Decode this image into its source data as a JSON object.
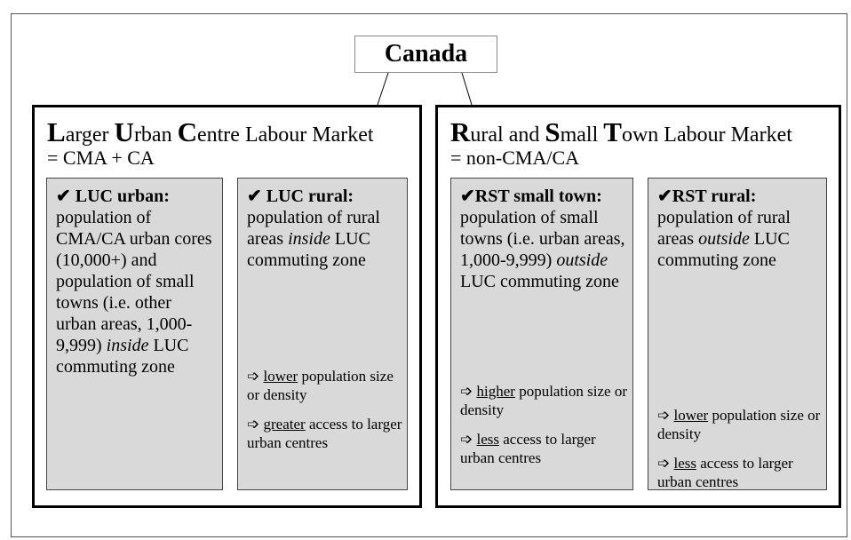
{
  "root": {
    "label": "Canada"
  },
  "markets": [
    {
      "title": [
        {
          "t": "L",
          "s": "cap"
        },
        "arger ",
        {
          "t": "U",
          "s": "cap"
        },
        "rban ",
        {
          "t": "C",
          "s": "cap"
        },
        "entre Labour Market"
      ],
      "subtitle": "= CMA + CA",
      "zones": [
        {
          "heading": "✔ LUC urban:",
          "description": [
            "population of CMA/CA urban cores (10,000+) and population of small towns (i.e. other urban areas, 1,000-9,999) ",
            {
              "t": "inside",
              "s": "i"
            },
            " LUC commuting zone"
          ]
        },
        {
          "heading": "✔ LUC rural:",
          "description": [
            "population of rural areas ",
            {
              "t": "inside",
              "s": "i"
            },
            " LUC commuting zone"
          ],
          "traits": [
            [
              "➩ ",
              {
                "t": "lower",
                "s": "u"
              },
              " population size or density"
            ],
            [
              "➩ ",
              {
                "t": "greater",
                "s": "u"
              },
              " access to larger urban centres"
            ]
          ]
        }
      ]
    },
    {
      "title": [
        {
          "t": "R",
          "s": "cap"
        },
        "ural and ",
        {
          "t": "S",
          "s": "cap"
        },
        "mall ",
        {
          "t": "T",
          "s": "cap"
        },
        "own Labour Market"
      ],
      "subtitle": "= non-CMA/CA",
      "zones": [
        {
          "heading": "✔RST small town:",
          "description": [
            "population of small towns (i.e. urban areas, 1,000-9,999) ",
            {
              "t": "outside",
              "s": "i"
            },
            " LUC commuting zone"
          ],
          "traits": [
            [
              "➩ ",
              {
                "t": "higher",
                "s": "u"
              },
              " population size or density"
            ],
            [
              "➩ ",
              {
                "t": "less",
                "s": "u"
              },
              " access to larger urban centres"
            ]
          ]
        },
        {
          "heading": "✔RST rural:",
          "description": [
            "population of rural areas ",
            {
              "t": "outside",
              "s": "i"
            },
            " LUC commuting zone"
          ],
          "traits": [
            [
              "➩ ",
              {
                "t": "lower",
                "s": "u"
              },
              " population size or density"
            ],
            [
              "➩ ",
              {
                "t": "less",
                "s": "u"
              },
              " access to larger urban centres"
            ]
          ]
        }
      ]
    }
  ]
}
